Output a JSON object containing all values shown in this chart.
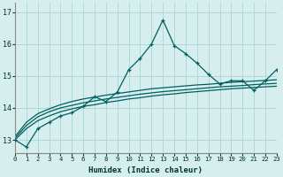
{
  "xlabel": "Humidex (Indice chaleur)",
  "background_color": "#d6eeee",
  "grid_color": "#b0d8d8",
  "line_color": "#006060",
  "xlim": [
    0,
    23
  ],
  "ylim": [
    12.6,
    17.3
  ],
  "yticks": [
    13,
    14,
    15,
    16,
    17
  ],
  "xtick_labels": [
    "0",
    "1",
    "2",
    "3",
    "4",
    "5",
    "6",
    "7",
    "8",
    "9",
    "10",
    "11",
    "12",
    "13",
    "14",
    "15",
    "16",
    "17",
    "18",
    "19",
    "20",
    "21",
    "22",
    "23"
  ],
  "main_y": [
    13.0,
    12.78,
    13.35,
    13.55,
    13.75,
    13.85,
    14.05,
    14.35,
    14.2,
    14.5,
    15.2,
    15.55,
    16.0,
    16.75,
    15.95,
    15.7,
    15.4,
    15.05,
    14.75,
    14.85,
    14.85,
    14.55,
    14.85,
    15.2
  ],
  "curve1_y": [
    13.0,
    13.35,
    13.6,
    13.75,
    13.88,
    13.97,
    14.05,
    14.1,
    14.17,
    14.22,
    14.28,
    14.32,
    14.37,
    14.41,
    14.44,
    14.48,
    14.51,
    14.54,
    14.57,
    14.6,
    14.62,
    14.64,
    14.66,
    14.68
  ],
  "curve2_y": [
    13.1,
    13.55,
    13.82,
    13.97,
    14.1,
    14.2,
    14.28,
    14.34,
    14.4,
    14.45,
    14.5,
    14.55,
    14.6,
    14.63,
    14.66,
    14.69,
    14.72,
    14.74,
    14.77,
    14.8,
    14.82,
    14.84,
    14.86,
    14.88
  ],
  "curve3_y": [
    13.05,
    13.45,
    13.72,
    13.88,
    14.0,
    14.08,
    14.16,
    14.22,
    14.28,
    14.33,
    14.38,
    14.43,
    14.47,
    14.51,
    14.54,
    14.57,
    14.6,
    14.63,
    14.66,
    14.68,
    14.7,
    14.73,
    14.75,
    14.77
  ]
}
